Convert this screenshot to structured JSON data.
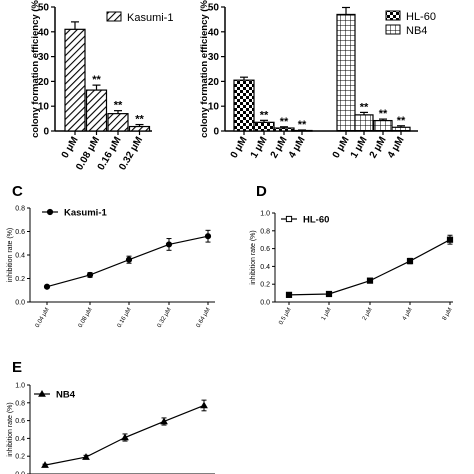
{
  "panels": {
    "C": "C",
    "D": "D",
    "E": "E"
  },
  "chart_data": [
    {
      "id": "A",
      "type": "bar",
      "ylabel": "colony formation efficiency (%",
      "ylim": [
        0,
        50
      ],
      "yticks": [
        "0",
        "10",
        "20",
        "30",
        "40",
        "50"
      ],
      "categories": [
        "0 μM",
        "0.08 μM",
        "0.16 μM",
        "0.32 μM"
      ],
      "series": [
        {
          "name": "Kasumi-1",
          "values": [
            41,
            16.5,
            7,
            1.8
          ],
          "errors": [
            3,
            2,
            1.2,
            0.8
          ],
          "annotations": [
            "",
            "**",
            "**",
            "**"
          ],
          "pattern": "diagonal"
        }
      ]
    },
    {
      "id": "B",
      "type": "bar",
      "ylabel": "colony formation efficiency (%",
      "ylim": [
        0,
        50
      ],
      "yticks": [
        "0",
        "10",
        "20",
        "30",
        "40",
        "50"
      ],
      "series": [
        {
          "name": "HL-60",
          "pattern": "checker",
          "categories": [
            "0 μM",
            "1 μM",
            "2 μM",
            "4 μM"
          ],
          "values": [
            20.5,
            3.5,
            1.2,
            0.2
          ],
          "errors": [
            1.2,
            0.8,
            0.5,
            0.2
          ],
          "annotations": [
            "",
            "**",
            "**",
            "**"
          ]
        },
        {
          "name": "NB4",
          "pattern": "grid",
          "categories": [
            "0 μM",
            "1 μM",
            "2 μM",
            "4 μM"
          ],
          "values": [
            47,
            6.5,
            4.2,
            1.5
          ],
          "errors": [
            2.8,
            1.0,
            0.6,
            0.6
          ],
          "annotations": [
            "",
            "**",
            "**",
            "**"
          ]
        }
      ]
    },
    {
      "id": "C",
      "type": "line",
      "ylabel": "inhibition rate (%)",
      "ylim": [
        0,
        0.8
      ],
      "yticks": [
        "0.0",
        "0.2",
        "0.4",
        "0.6",
        "0.8"
      ],
      "categories": [
        "0.04 μM",
        "0.08 μM",
        "0.16 μM",
        "0.32 μM",
        "0.64 μM"
      ],
      "series": [
        {
          "name": "Kasumi-1",
          "marker": "circle",
          "values": [
            0.13,
            0.23,
            0.36,
            0.49,
            0.56
          ],
          "errors": [
            0.01,
            0.02,
            0.03,
            0.05,
            0.05
          ]
        }
      ]
    },
    {
      "id": "D",
      "type": "line",
      "ylabel": "inhibition rate (%)",
      "ylim": [
        0,
        1.0
      ],
      "yticks": [
        "0.0",
        "0.2",
        "0.4",
        "0.6",
        "0.8",
        "1.0"
      ],
      "categories": [
        "0.5 μM",
        "1 μM",
        "2 μM",
        "4 μM",
        "8 μM"
      ],
      "series": [
        {
          "name": "HL-60",
          "marker": "square",
          "values": [
            0.08,
            0.09,
            0.24,
            0.46,
            0.7
          ],
          "errors": [
            0.01,
            0.01,
            0.01,
            0.03,
            0.05
          ]
        }
      ]
    },
    {
      "id": "E",
      "type": "line",
      "ylabel": "inhibition rate (%)",
      "ylim": [
        0,
        1.0
      ],
      "yticks": [
        "0.0",
        "0.2",
        "0.4",
        "0.6",
        "0.8",
        "1.0"
      ],
      "series": [
        {
          "name": "NB4",
          "marker": "triangle",
          "values": [
            0.1,
            0.19,
            0.41,
            0.59,
            0.77
          ],
          "errors": [
            0.01,
            0.02,
            0.04,
            0.04,
            0.06
          ]
        }
      ]
    }
  ]
}
